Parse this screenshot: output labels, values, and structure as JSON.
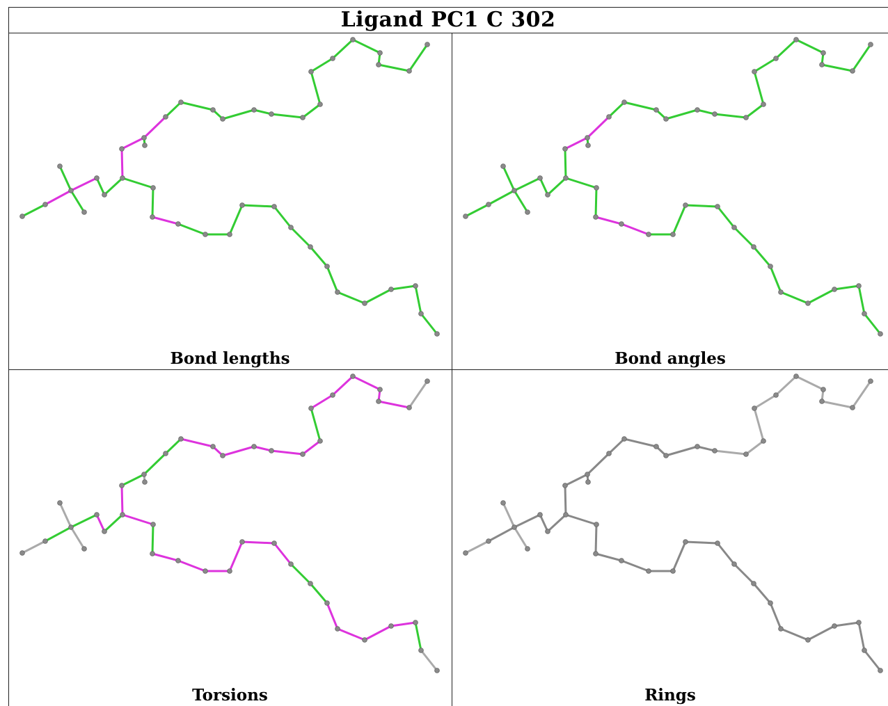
{
  "title": "Ligand PC1 C 302",
  "panels": [
    {
      "caption": "Bond lengths"
    },
    {
      "caption": "Bond angles"
    },
    {
      "caption": "Torsions"
    },
    {
      "caption": "Rings"
    }
  ],
  "colors": {
    "green": "#33cc33",
    "green_dark": "#1f8a1f",
    "magenta": "#dd33dd",
    "gray": "#aaaaaa",
    "gray_dark": "#888888",
    "atom": "#8a8a8a"
  }
}
